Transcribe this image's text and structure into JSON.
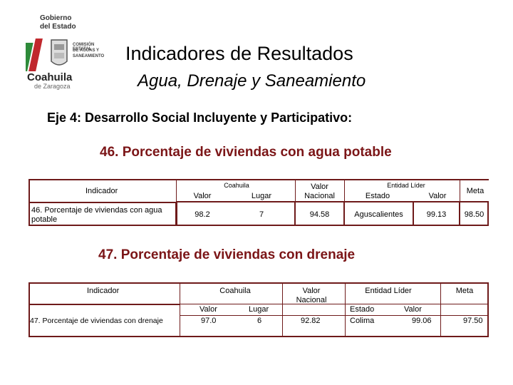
{
  "logo": {
    "line1": "Gobierno",
    "line2": "del Estado",
    "agency": [
      "COMISIÓN ESTATAL",
      "DE AGUAS Y",
      "SANEAMIENTO"
    ],
    "state": "Coahuila",
    "state_suffix": "de Zaragoza"
  },
  "header": {
    "title": "Indicadores de Resultados",
    "subtitle": "Agua, Drenaje y Saneamiento"
  },
  "eje": "Eje 4: Desarrollo Social Incluyente y Participativo:",
  "table1": {
    "title": "46. Porcentaje de viviendas con agua potable",
    "h_indicador": "Indicador",
    "h_coahuila": "Coahuila",
    "h_valor": "Valor",
    "h_lugar": "Lugar",
    "h_valor_nacional": [
      "Valor",
      "Nacional"
    ],
    "h_entidad": "Entidad Líder",
    "h_estado": "Estado",
    "h_valor2": "Valor",
    "h_meta": "Meta",
    "row": {
      "indicador": [
        "46. Porcentaje de viviendas con agua",
        "potable"
      ],
      "valor": "98.2",
      "lugar": "7",
      "nacional": "94.58",
      "estado": "Aguscalientes",
      "valor_lider": "99.13",
      "meta": "98.50"
    }
  },
  "table2": {
    "title": "47. Porcentaje de viviendas con drenaje",
    "h_indicador": "Indicador",
    "h_coahuila": "Coahuila",
    "h_valor": "Valor",
    "h_lugar": "Lugar",
    "h_valor_nacional": [
      "Valor",
      "Nacional"
    ],
    "h_entidad": "Entidad Líder",
    "h_estado": "Estado",
    "h_valor2": "Valor",
    "h_meta": "Meta",
    "row": {
      "indicador": "47. Porcentaje de viviendas con drenaje",
      "valor": "97.0",
      "lugar": "6",
      "nacional": "92.82",
      "estado": "Colima",
      "valor_lider": "99.06",
      "meta": "97.50"
    }
  },
  "colors": {
    "title_accent": "#7b1517",
    "border": "#6e1a1a",
    "logo_green": "#2e8b3a",
    "logo_red": "#c0282d"
  }
}
